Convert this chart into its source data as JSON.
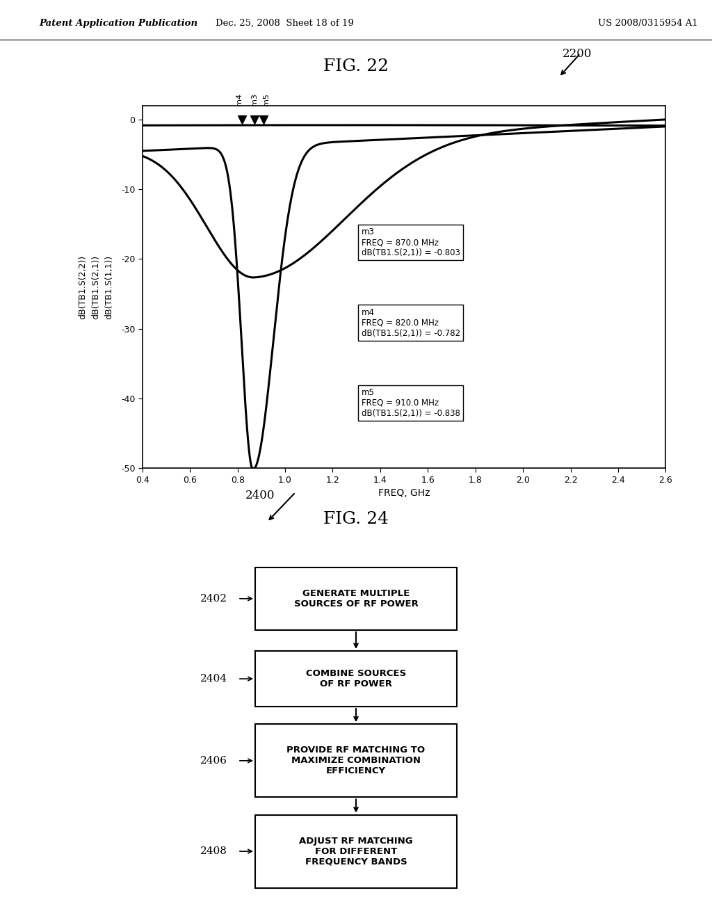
{
  "header_left": "Patent Application Publication",
  "header_mid": "Dec. 25, 2008  Sheet 18 of 19",
  "header_right": "US 2008/0315954 A1",
  "fig22_label": "FIG. 22",
  "fig22_number": "2200",
  "fig24_label": "FIG. 24",
  "fig24_number": "2400",
  "chart_ylabel_lines": [
    "dB(TB1.S(2,2))",
    "dB(TB1.S(2,1))",
    "dB(TB1.S(1,1))"
  ],
  "chart_xlabel": "FREQ, GHz",
  "x_ticks": [
    0.4,
    0.6,
    0.8,
    1.0,
    1.2,
    1.4,
    1.6,
    1.8,
    2.0,
    2.2,
    2.4,
    2.6
  ],
  "y_ticks": [
    0,
    -10,
    -20,
    -30,
    -40,
    -50
  ],
  "xlim": [
    0.4,
    2.6
  ],
  "ylim": [
    -50,
    2
  ],
  "annotation_m3": "m3\nFREQ = 870.0 MHz\ndB(TB1.S(2,1)) = -0.803",
  "annotation_m4": "m4\nFREQ = 820.0 MHz\ndB(TB1.S(2,1)) = -0.782",
  "annotation_m5": "m5\nFREQ = 910.0 MHz\ndB(TB1.S(2,1)) = -0.838",
  "marker_freqs": [
    0.82,
    0.87,
    0.91
  ],
  "marker_labels": [
    "m4",
    "m3",
    "m5"
  ],
  "flowchart_steps": [
    {
      "id": "2402",
      "text": "GENERATE MULTIPLE\nSOURCES OF RF POWER"
    },
    {
      "id": "2404",
      "text": "COMBINE SOURCES\nOF RF POWER"
    },
    {
      "id": "2406",
      "text": "PROVIDE RF MATCHING TO\nMAXIMIZE COMBINATION\nEFFICIENCY"
    },
    {
      "id": "2408",
      "text": "ADJUST RF MATCHING\nFOR DIFFERENT\nFREQUENCY BANDS"
    }
  ],
  "bg_color": "#ffffff"
}
